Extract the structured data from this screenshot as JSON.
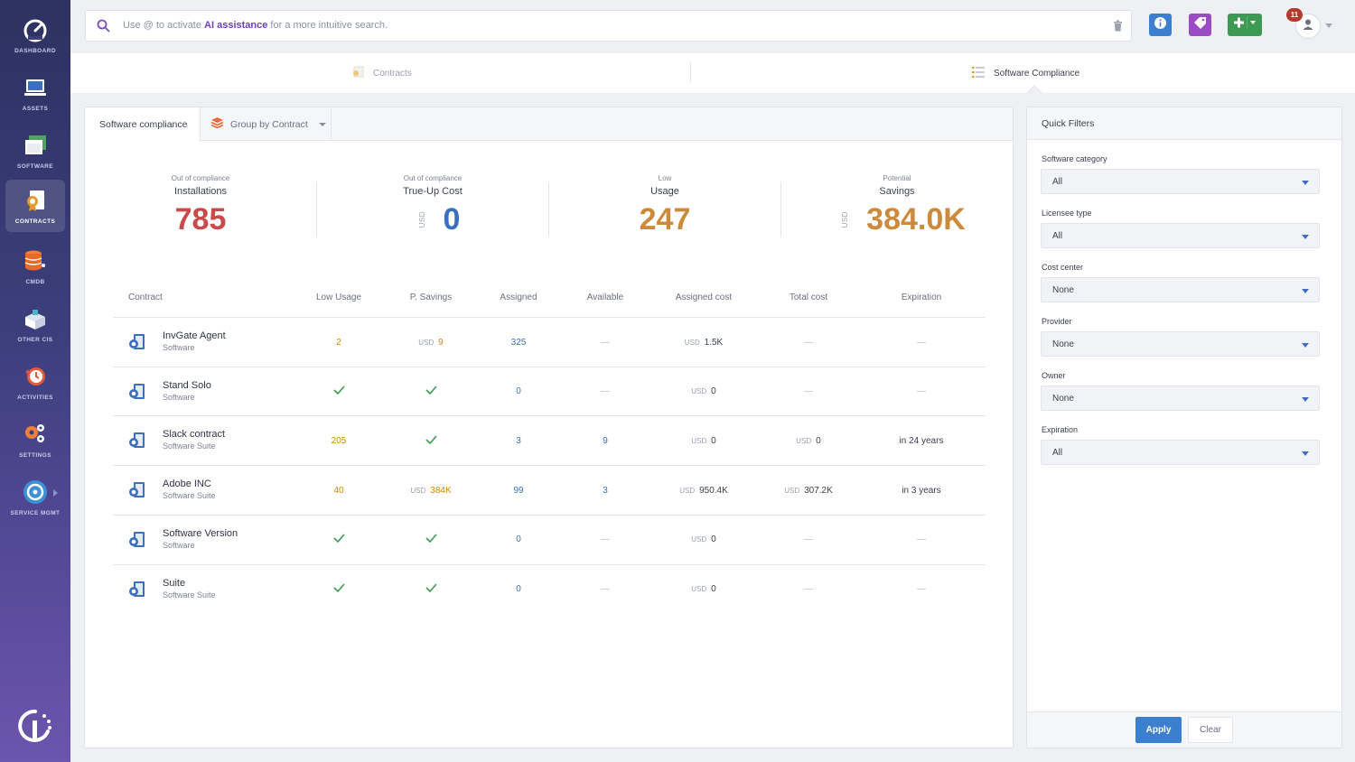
{
  "sidebar": {
    "items": [
      {
        "label": "DASHBOARD",
        "icon": "speedometer-icon"
      },
      {
        "label": "ASSETS",
        "icon": "laptop-icon"
      },
      {
        "label": "SOFTWARE",
        "icon": "software-window-icon"
      },
      {
        "label": "CONTRACTS",
        "icon": "contract-icon"
      },
      {
        "label": "CMDB",
        "icon": "database-icon"
      },
      {
        "label": "OTHER CIS",
        "icon": "box-icon"
      },
      {
        "label": "ACTIVITIES",
        "icon": "clock-history-icon"
      },
      {
        "label": "SETTINGS",
        "icon": "gears-icon"
      },
      {
        "label": "SERVICE MGMT",
        "icon": "service-logo-icon"
      }
    ]
  },
  "search": {
    "prefix": "Use @ to activate ",
    "highlight": "AI assistance",
    "suffix": " for a more intuitive search."
  },
  "header": {
    "notifications": "11"
  },
  "page_tabs": [
    {
      "label": "Contracts"
    },
    {
      "label": "Software Compliance"
    }
  ],
  "main": {
    "tabs": [
      {
        "label": "Software compliance"
      },
      {
        "label": "Group by Contract"
      }
    ],
    "kpis": [
      {
        "sub": "Out of compliance",
        "title": "Installations",
        "currency": "",
        "value": "785",
        "color": "#c94a4a"
      },
      {
        "sub": "Out of compliance",
        "title": "True-Up Cost",
        "currency": "USD",
        "value": "0",
        "color": "#3b6fbf"
      },
      {
        "sub": "Low",
        "title": "Usage",
        "currency": "",
        "value": "247",
        "color": "#cc8a3d"
      },
      {
        "sub": "Potential",
        "title": "Savings",
        "currency": "USD",
        "value": "384.0K",
        "color": "#cc8a3d"
      }
    ],
    "columns": [
      "Contract",
      "Low Usage",
      "P. Savings",
      "Assigned",
      "Available",
      "Assigned cost",
      "Total cost",
      "Expiration"
    ],
    "rows": [
      {
        "name": "InvGate Agent",
        "type": "Software",
        "low_usage": "2",
        "p_savings_cur": "USD",
        "p_savings": "9",
        "assigned": "325",
        "available": "—",
        "assigned_cost_cur": "USD",
        "assigned_cost": "1.5K",
        "total_cost_cur": "",
        "total_cost": "—",
        "expiration": "—"
      },
      {
        "name": "Stand Solo",
        "type": "Software",
        "low_usage": "✓",
        "p_savings_cur": "",
        "p_savings": "✓",
        "assigned": "0",
        "available": "—",
        "assigned_cost_cur": "USD",
        "assigned_cost": "0",
        "total_cost_cur": "",
        "total_cost": "—",
        "expiration": "—"
      },
      {
        "name": "Slack contract",
        "type": "Software Suite",
        "low_usage": "205",
        "p_savings_cur": "",
        "p_savings": "✓",
        "assigned": "3",
        "available": "9",
        "assigned_cost_cur": "USD",
        "assigned_cost": "0",
        "total_cost_cur": "USD",
        "total_cost": "0",
        "expiration": "in 24 years"
      },
      {
        "name": "Adobe INC",
        "type": "Software Suite",
        "low_usage": "40",
        "p_savings_cur": "USD",
        "p_savings": "384K",
        "assigned": "99",
        "available": "3",
        "assigned_cost_cur": "USD",
        "assigned_cost": "950.4K",
        "total_cost_cur": "USD",
        "total_cost": "307.2K",
        "expiration": "in 3 years"
      },
      {
        "name": "Software Version",
        "type": "Software",
        "low_usage": "✓",
        "p_savings_cur": "",
        "p_savings": "✓",
        "assigned": "0",
        "available": "—",
        "assigned_cost_cur": "USD",
        "assigned_cost": "0",
        "total_cost_cur": "",
        "total_cost": "—",
        "expiration": "—"
      },
      {
        "name": "Suite",
        "type": "Software Suite",
        "low_usage": "✓",
        "p_savings_cur": "",
        "p_savings": "✓",
        "assigned": "0",
        "available": "—",
        "assigned_cost_cur": "USD",
        "assigned_cost": "0",
        "total_cost_cur": "",
        "total_cost": "—",
        "expiration": "—"
      }
    ]
  },
  "filters": {
    "title": "Quick Filters",
    "fields": [
      {
        "label": "Software category",
        "value": "All"
      },
      {
        "label": "Licensee type",
        "value": "All"
      },
      {
        "label": "Cost center",
        "value": "None"
      },
      {
        "label": "Provider",
        "value": "None"
      },
      {
        "label": "Owner",
        "value": "None"
      },
      {
        "label": "Expiration",
        "value": "All"
      }
    ],
    "apply_label": "Apply",
    "clear_label": "Clear"
  },
  "colors": {
    "accent": "#3d7fcf",
    "red": "#c94a4a",
    "orange": "#cc8a3d",
    "green": "#3e9a52",
    "purple": "#9b4cc5"
  }
}
